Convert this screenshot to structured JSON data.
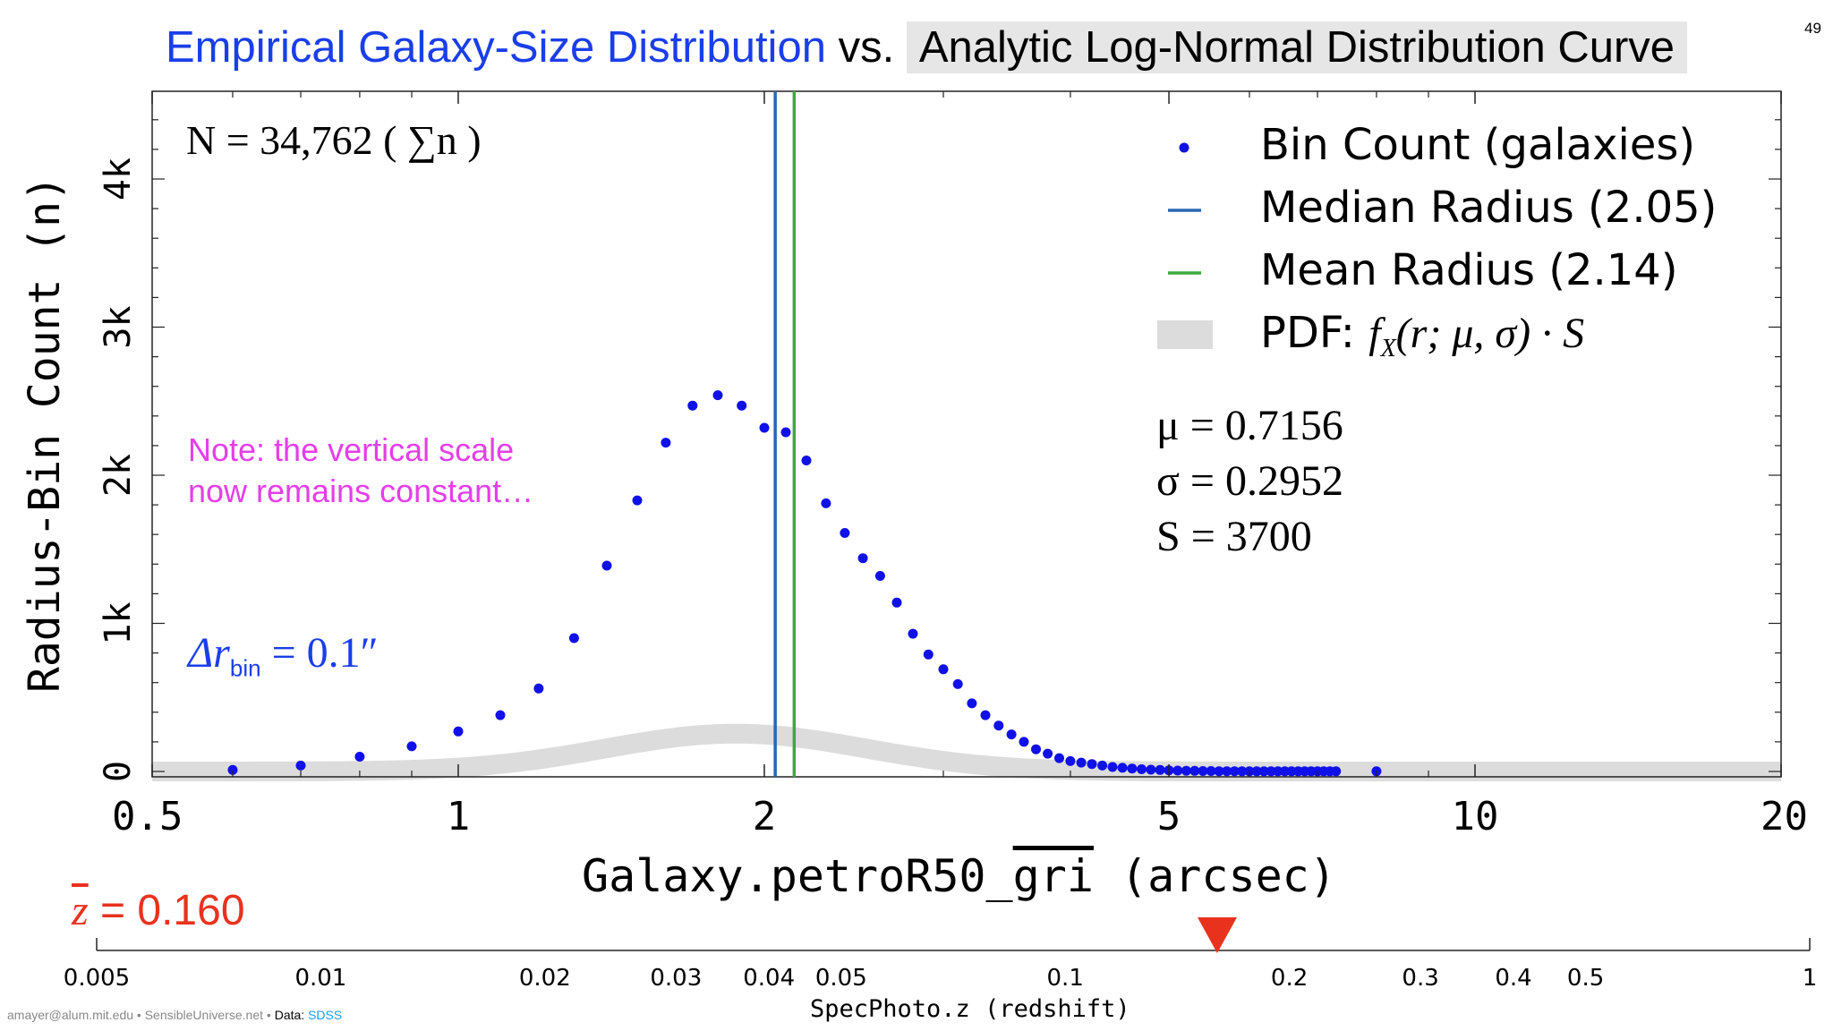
{
  "slide": {
    "page_number": "49",
    "title_part1": "Empirical Galaxy-Size Distribution",
    "title_vs": "vs.",
    "title_part2": "Analytic Log-Normal Distribution Curve",
    "footer_contact": "amayer@alum.mit.edu • SensibleUniverse.net •",
    "footer_data_label": "Data:",
    "footer_data_source": "SDSS",
    "colors": {
      "title_blue": "#1a3ee8",
      "note_magenta": "#e53ee8",
      "z_red": "#e8321e",
      "dot_blue": "#1010e8",
      "median_blue": "#2a66b4",
      "mean_green": "#3ea83e",
      "pdf_gray": "#dcdcdc"
    }
  },
  "annotations": {
    "n_total": "N = 34,762 ( ∑n )",
    "note_line1": "Note: the vertical scale",
    "note_line2": "now remains constant…",
    "delta_r": "Δr",
    "delta_r_sub": "bin",
    "delta_r_value": " = 0.1″",
    "mu": "μ = 0.7156",
    "sigma": "σ = 0.2952",
    "S": "S = 3700",
    "z_mean_symbol": "z",
    "z_mean_value": " = 0.160"
  },
  "chart_data": [
    {
      "type": "scatter",
      "xlabel_prefix": "Galaxy.petroR50_",
      "xlabel_overline": "gri",
      "xlabel_suffix": " (arcsec)",
      "ylabel": "Radius-Bin Count (n)",
      "x_scale": "log",
      "xlim": [
        0.5,
        20
      ],
      "ylim": [
        -50,
        4600
      ],
      "x_ticks": [
        0.5,
        1,
        2,
        5,
        10,
        20
      ],
      "x_tick_labels": [
        "0.5",
        "1",
        "2",
        "5",
        "10",
        "20"
      ],
      "y_ticks": [
        0,
        1000,
        2000,
        3000,
        4000
      ],
      "y_tick_labels": [
        "0",
        "1k",
        "2k",
        "3k",
        "4k"
      ],
      "legend": {
        "position": "top-right",
        "entries": [
          "Bin Count (galaxies)",
          "Median Radius (2.05)",
          "Mean Radius (2.14)",
          "PDF:  f_X(r; μ, σ) · S"
        ],
        "pdf_label_prefix": "PDF:  ",
        "pdf_f": "f",
        "pdf_sub": "X",
        "pdf_args": "(r; μ, σ) · S"
      },
      "vertical_lines": [
        {
          "name": "Median Radius (2.05)",
          "x": 2.05
        },
        {
          "name": "Mean Radius (2.14)",
          "x": 2.14
        }
      ],
      "pdf": {
        "mu": 0.7156,
        "sigma": 0.2952,
        "S": 3700
      },
      "series": [
        {
          "name": "Bin Count (galaxies)",
          "x": [
            0.6,
            0.7,
            0.8,
            0.9,
            1.0,
            1.1,
            1.2,
            1.3,
            1.4,
            1.5,
            1.6,
            1.7,
            1.8,
            1.9,
            2.0,
            2.1,
            2.2,
            2.3,
            2.4,
            2.5,
            2.6,
            2.7,
            2.8,
            2.9,
            3.0,
            3.1,
            3.2,
            3.3,
            3.4,
            3.5,
            3.6,
            3.7,
            3.8,
            3.9,
            4.0,
            4.1,
            4.2,
            4.3,
            4.4,
            4.5,
            4.6,
            4.7,
            4.8,
            4.9,
            5.0,
            5.1,
            5.2,
            5.3,
            5.4,
            5.5,
            5.6,
            5.7,
            5.8,
            5.9,
            6.0,
            6.1,
            6.2,
            6.3,
            6.4,
            6.5,
            6.6,
            6.7,
            6.8,
            6.9,
            7.0,
            7.1,
            7.2,
            7.3,
            8.0
          ],
          "y": [
            10,
            40,
            100,
            170,
            270,
            380,
            560,
            900,
            1390,
            1830,
            2220,
            2470,
            2540,
            2470,
            2320,
            2290,
            2100,
            1810,
            1610,
            1440,
            1320,
            1140,
            930,
            790,
            690,
            590,
            460,
            380,
            310,
            250,
            200,
            150,
            120,
            90,
            70,
            60,
            50,
            40,
            30,
            25,
            20,
            15,
            12,
            10,
            8,
            6,
            5,
            4,
            3,
            3,
            2,
            2,
            2,
            1,
            1,
            1,
            1,
            1,
            1,
            1,
            1,
            1,
            1,
            1,
            1,
            1,
            1,
            1,
            1
          ]
        }
      ]
    },
    {
      "type": "scatter",
      "xlabel": "SpecPhoto.z (redshift)",
      "x_scale": "log",
      "xlim": [
        0.005,
        1
      ],
      "x_ticks": [
        0.005,
        0.01,
        0.02,
        0.03,
        0.04,
        0.05,
        0.1,
        0.2,
        0.3,
        0.4,
        0.5,
        1
      ],
      "x_tick_labels": [
        "0.005",
        "0.01",
        "0.02",
        "0.03",
        "0.04",
        "0.05",
        "0.1",
        "0.2",
        "0.3",
        "0.4",
        "0.5",
        "1"
      ],
      "marker": {
        "name": "mean redshift",
        "x": 0.16
      }
    }
  ]
}
